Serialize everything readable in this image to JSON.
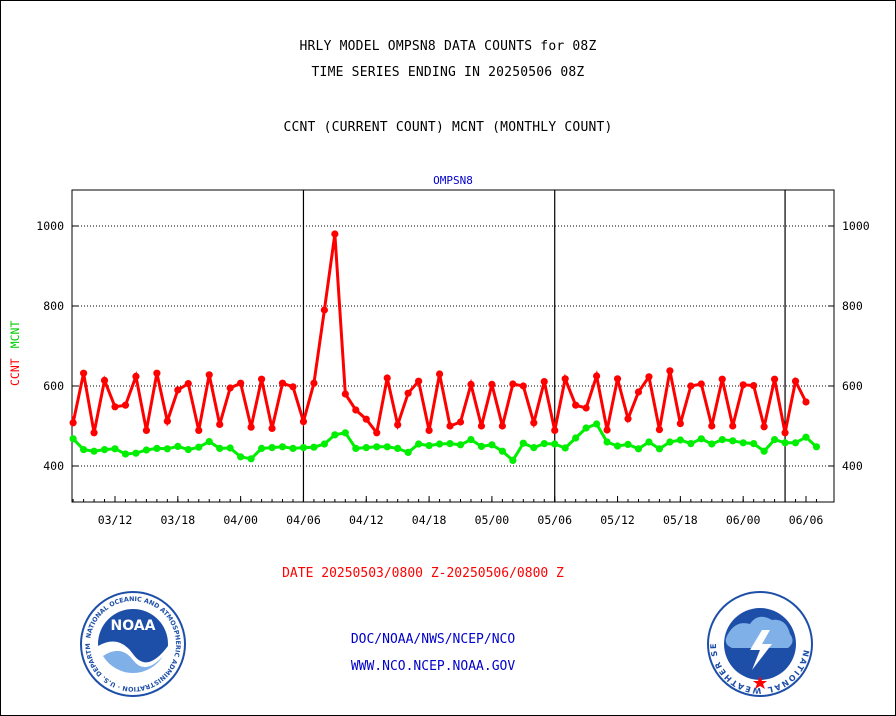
{
  "header": {
    "line1": "HRLY MODEL OMPSN8 DATA COUNTS for 08Z",
    "line2": "TIME SERIES ENDING IN 20250506 08Z",
    "line3": "CCNT (CURRENT COUNT) MCNT (MONTHLY COUNT)"
  },
  "chart_data": {
    "type": "line",
    "title": "OMPSN8",
    "ylabel_ccnt": "CCNT",
    "ylabel_mcnt": "MCNT",
    "xlabel": "DATE 20250503/0800 Z-20250506/0800 Z",
    "ylim": [
      310,
      1090
    ],
    "yticks": [
      400,
      600,
      800,
      1000
    ],
    "xlim": [
      0,
      72
    ],
    "xticks": [
      {
        "x": 6,
        "label": "03/12"
      },
      {
        "x": 12,
        "label": "03/18"
      },
      {
        "x": 18,
        "label": "04/00"
      },
      {
        "x": 24,
        "label": "04/06"
      },
      {
        "x": 30,
        "label": "04/12"
      },
      {
        "x": 36,
        "label": "04/18"
      },
      {
        "x": 42,
        "label": "05/00"
      },
      {
        "x": 48,
        "label": "05/06"
      },
      {
        "x": 54,
        "label": "05/12"
      },
      {
        "x": 60,
        "label": "05/18"
      },
      {
        "x": 66,
        "label": "06/00"
      },
      {
        "x": 72,
        "label": "06/06"
      }
    ],
    "day_boundaries": [
      24,
      48,
      70
    ],
    "grid": true,
    "series": [
      {
        "name": "CCNT",
        "color": "#ff0000",
        "values": [
          608,
          600,
          508,
          632,
          483,
          614,
          548,
          552,
          624,
          489,
          632,
          512,
          590,
          606,
          489,
          628,
          504,
          595,
          607,
          497,
          617,
          494,
          607,
          598,
          511,
          607,
          790,
          980,
          580,
          540,
          517,
          483,
          620,
          503,
          582,
          612,
          489,
          630,
          500,
          510,
          604,
          500,
          604,
          500,
          605,
          600,
          508,
          611,
          489,
          618,
          552,
          545,
          625,
          490,
          618,
          518,
          585,
          623,
          491,
          638,
          506,
          600,
          605,
          500,
          617,
          500,
          603,
          601,
          498,
          617,
          483,
          612,
          560
        ],
        "x_start": 0,
        "x_step": 1
      },
      {
        "name": "MCNT",
        "color": "#00ee00",
        "values": [
          440,
          443,
          478,
          468,
          441,
          437,
          441,
          443,
          430,
          432,
          440,
          444,
          443,
          449,
          441,
          447,
          461,
          444,
          445,
          423,
          418,
          444,
          446,
          448,
          444,
          446,
          447,
          455,
          478,
          483,
          444,
          446,
          448,
          448,
          444,
          434,
          455,
          451,
          455,
          456,
          453,
          466,
          449,
          453,
          437,
          414,
          457,
          446,
          456,
          455,
          445,
          470,
          495,
          505,
          460,
          450,
          454,
          443,
          460,
          443,
          460,
          465,
          456,
          468,
          455,
          466,
          463,
          458,
          456,
          437,
          466,
          458,
          458,
          472,
          448
        ],
        "x_start": -1,
        "x_step": 1
      }
    ]
  },
  "footer": {
    "date_range": "DATE 20250503/0800 Z-20250506/0800 Z",
    "link1": "DOC/NOAA/NWS/NCEP/NCO",
    "link2": "WWW.NCO.NCEP.NOAA.GOV"
  },
  "logos": {
    "noaa_center": "NOAA",
    "noaa_ring": "NATIONAL OCEANIC AND ATMOSPHERIC ADMINISTRATION · U.S. DEPARTMENT OF COMMERCE ·",
    "nws_ring": "NATIONAL WEATHER SERVICE"
  },
  "colors": {
    "ccnt": "#ff0000",
    "mcnt": "#00ee00",
    "title_blue": "#0000cc",
    "noaa_blue": "#1e4fa8"
  }
}
